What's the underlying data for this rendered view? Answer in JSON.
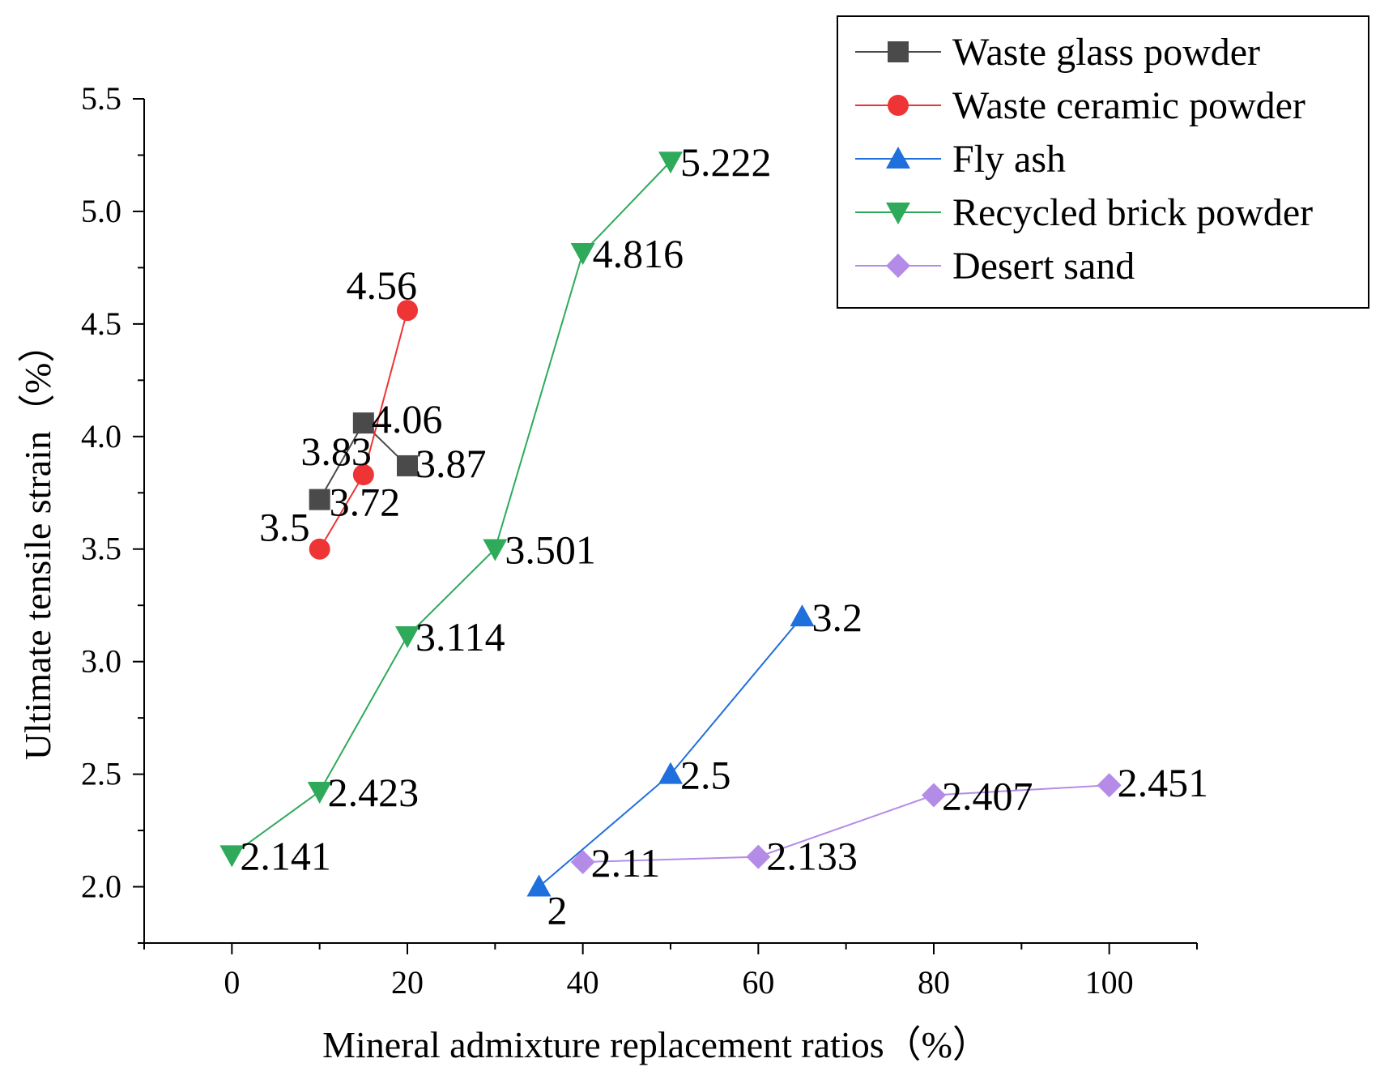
{
  "chart_data": {
    "type": "line",
    "title": "",
    "xlabel": "Mineral admixture replacement ratios（%）",
    "ylabel": "Ultimate tensile strain（%）",
    "xlim": [
      -10,
      110
    ],
    "ylim": [
      1.75,
      5.5
    ],
    "x_ticks": [
      0,
      20,
      40,
      60,
      80,
      100
    ],
    "x_tick_labels": [
      "0",
      "20",
      "40",
      "60",
      "80",
      "100"
    ],
    "y_ticks": [
      2.0,
      2.5,
      3.0,
      3.5,
      4.0,
      4.5,
      5.0,
      5.5
    ],
    "y_tick_labels": [
      "2.0",
      "2.5",
      "3.0",
      "3.5",
      "4.0",
      "4.5",
      "5.0",
      "5.5"
    ],
    "grid": false,
    "legend_position": "top-right",
    "series": [
      {
        "name": "Waste glass powder",
        "color": "#4a4a4a",
        "marker": "square",
        "x": [
          10,
          15,
          20
        ],
        "values": [
          3.72,
          4.06,
          3.87
        ],
        "labels": [
          "3.72",
          "4.06",
          "3.87"
        ]
      },
      {
        "name": "Waste ceramic powder",
        "color": "#ee3434",
        "marker": "circle",
        "x": [
          10,
          15,
          20
        ],
        "values": [
          3.5,
          3.83,
          4.56
        ],
        "labels": [
          "3.5",
          "3.83",
          "4.56"
        ]
      },
      {
        "name": "Fly ash",
        "color": "#1f6fdc",
        "marker": "triangle-up",
        "x": [
          35,
          50,
          65
        ],
        "values": [
          2.0,
          2.5,
          3.2
        ],
        "labels": [
          "2",
          "2.5",
          "3.2"
        ]
      },
      {
        "name": "Recycled brick powder",
        "color": "#2eaa5a",
        "marker": "triangle-down",
        "x": [
          0,
          10,
          20,
          30,
          40,
          50
        ],
        "values": [
          2.141,
          2.423,
          3.114,
          3.501,
          4.816,
          5.222
        ],
        "labels": [
          "2.141",
          "2.423",
          "3.114",
          "3.501",
          "4.816",
          "5.222"
        ]
      },
      {
        "name": "Desert sand",
        "color": "#b48ce8",
        "marker": "diamond",
        "x": [
          40,
          60,
          80,
          100
        ],
        "values": [
          2.11,
          2.133,
          2.407,
          2.451
        ],
        "labels": [
          "2.11",
          "2.133",
          "2.407",
          "2.451"
        ]
      }
    ]
  }
}
